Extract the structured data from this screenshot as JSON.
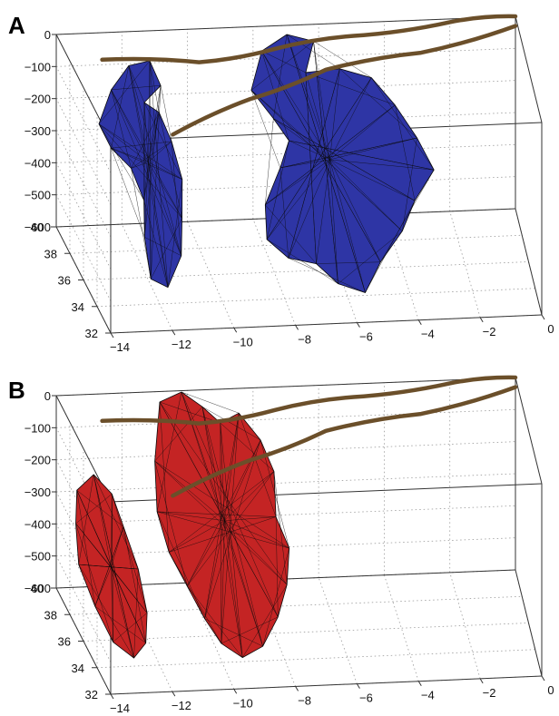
{
  "figure": {
    "colors": {
      "trace": "#6b4f2a",
      "panel_a_body": "#2e35a5",
      "panel_b_body": "#c42424",
      "mesh": "#0a0a0a",
      "grid": "#9a9a9a"
    },
    "icons": []
  },
  "chart_data": [
    {
      "type": "3d-surface",
      "panel": "A",
      "title": "",
      "xlabel": "",
      "ylabel": "",
      "zlabel": "",
      "xlim": [
        -14,
        0
      ],
      "ylim": [
        32,
        40
      ],
      "zlim": [
        -600,
        0
      ],
      "grid": true,
      "x_ticks": [
        -14,
        -12,
        -10,
        -8,
        -6,
        -4,
        -2,
        0
      ],
      "y_ticks": [
        32,
        34,
        36,
        38,
        40
      ],
      "z_ticks": [
        0,
        -100,
        -200,
        -300,
        -400,
        -500,
        -600
      ],
      "body_color": "#2e35a5",
      "trace_color": "#6b4f2a",
      "series": [
        {
          "type": "surface",
          "shape": "west-body",
          "x_range": [
            -12.5,
            -10.5
          ],
          "y_range": [
            35,
            39
          ],
          "z_range": [
            -600,
            -100
          ]
        },
        {
          "type": "surface",
          "shape": "east-body",
          "x_range": [
            -8,
            -3
          ],
          "y_range": [
            33,
            39.5
          ],
          "z_range": [
            -600,
            -50
          ]
        },
        {
          "type": "line",
          "shape": "northern-trace",
          "x": [
            -13,
            -10,
            -7.5,
            -5,
            -2,
            0
          ],
          "y": [
            38,
            38,
            39,
            39.5,
            40,
            40
          ],
          "z": [
            0,
            -20,
            -30,
            -20,
            -10,
            0
          ]
        },
        {
          "type": "line",
          "shape": "southern-trace",
          "x": [
            -11,
            -8.5,
            -6,
            -3,
            0
          ],
          "y": [
            37,
            37.5,
            38.5,
            39,
            40
          ],
          "z": [
            -200,
            -120,
            -80,
            -60,
            -30
          ]
        }
      ]
    },
    {
      "type": "3d-surface",
      "panel": "B",
      "title": "",
      "xlabel": "",
      "ylabel": "",
      "zlabel": "",
      "xlim": [
        -14,
        0
      ],
      "ylim": [
        32,
        40
      ],
      "zlim": [
        -600,
        0
      ],
      "grid": true,
      "x_ticks": [
        -14,
        -12,
        -10,
        -8,
        -6,
        -4,
        -2,
        0
      ],
      "y_ticks": [
        32,
        34,
        36,
        38,
        40
      ],
      "z_ticks": [
        0,
        -100,
        -200,
        -300,
        -400,
        -500,
        -600
      ],
      "body_color": "#c42424",
      "trace_color": "#6b4f2a",
      "series": [
        {
          "type": "surface",
          "shape": "west-body",
          "x_range": [
            -14,
            -11.5
          ],
          "y_range": [
            34,
            39
          ],
          "z_range": [
            -600,
            -200
          ]
        },
        {
          "type": "surface",
          "shape": "central-body",
          "x_range": [
            -11.5,
            -7.5
          ],
          "y_range": [
            34,
            40
          ],
          "z_range": [
            -600,
            0
          ]
        },
        {
          "type": "line",
          "shape": "northern-trace",
          "x": [
            -13,
            -10,
            -7.5,
            -5,
            -2,
            0
          ],
          "y": [
            38,
            38,
            39,
            39.5,
            40,
            40
          ],
          "z": [
            0,
            -20,
            -30,
            -20,
            -10,
            0
          ]
        },
        {
          "type": "line",
          "shape": "southern-trace",
          "x": [
            -11,
            -8.5,
            -6,
            -3,
            0
          ],
          "y": [
            37,
            37.5,
            38.5,
            39,
            40
          ],
          "z": [
            -200,
            -120,
            -80,
            -60,
            -30
          ]
        }
      ]
    }
  ],
  "panels": [
    {
      "label": "A",
      "x_ticks": [
        "−14",
        "−12",
        "−10",
        "−8",
        "−6",
        "−4",
        "−2",
        "0"
      ],
      "y_ticks": [
        "32",
        "34",
        "36",
        "38",
        "40"
      ],
      "z_ticks": [
        "0",
        "−100",
        "−200",
        "−300",
        "−400",
        "−500",
        "−600"
      ]
    },
    {
      "label": "B",
      "x_ticks": [
        "−14",
        "−12",
        "−10",
        "−8",
        "−6",
        "−4",
        "−2",
        "0"
      ],
      "y_ticks": [
        "32",
        "34",
        "36",
        "38",
        "40"
      ],
      "z_ticks": [
        "0",
        "−100",
        "−200",
        "−300",
        "−400",
        "−500",
        "−600"
      ]
    }
  ]
}
